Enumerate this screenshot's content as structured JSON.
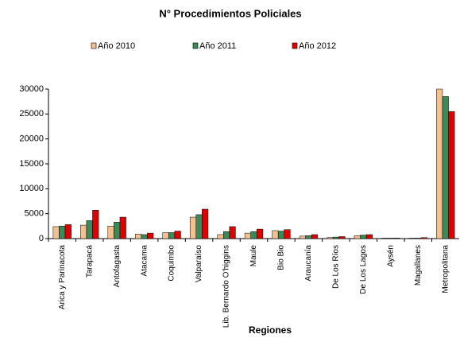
{
  "chart_data": {
    "type": "bar",
    "title": "N° Procedimientos Policiales",
    "x_label": "Regiones",
    "categories": [
      "Arica y Parinacota",
      "Tarapacá",
      "Antofagasta",
      "Atacama",
      "Coquimbo",
      "Valparaíso",
      "Lib. Bernardo O'higgins",
      "Maule",
      "Bio Bio",
      "Araucanía",
      "De Los Ríos",
      "De Los Lagos",
      "Aysén",
      "Magallanes",
      "Metropolitana"
    ],
    "series": [
      {
        "name": "Año 2010",
        "color": "#f5c08f",
        "values": [
          2400,
          2700,
          2500,
          900,
          1200,
          4300,
          800,
          1100,
          1600,
          500,
          200,
          600,
          100,
          100,
          30000
        ]
      },
      {
        "name": "Año 2011",
        "color": "#3a8a5a",
        "values": [
          2500,
          3600,
          3300,
          800,
          1200,
          4800,
          1400,
          1400,
          1500,
          600,
          300,
          700,
          100,
          100,
          28500
        ]
      },
      {
        "name": "Año 2012",
        "color": "#e00000",
        "values": [
          2800,
          5700,
          4300,
          1100,
          1500,
          5900,
          2400,
          1900,
          1800,
          800,
          400,
          800,
          100,
          200,
          25500
        ]
      }
    ],
    "ylim": [
      0,
      30000
    ],
    "yticks": [
      0,
      5000,
      10000,
      15000,
      20000,
      25000,
      30000
    ],
    "grid": false,
    "legend": "top"
  }
}
